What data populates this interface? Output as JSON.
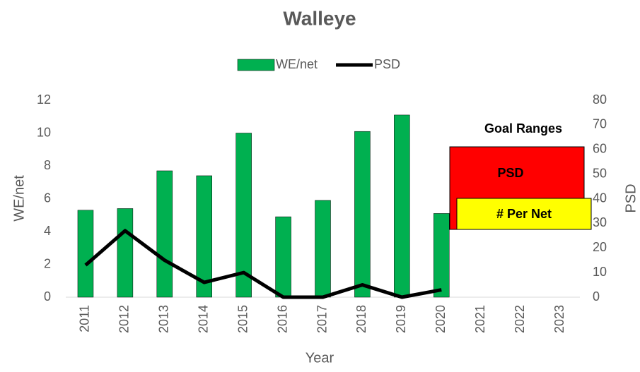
{
  "chart_data": {
    "type": "bar_line",
    "title": "Walleye",
    "categories": [
      "2011",
      "2012",
      "2013",
      "2014",
      "2015",
      "2016",
      "2017",
      "2018",
      "2019",
      "2020",
      "2021",
      "2022",
      "2023"
    ],
    "series": [
      {
        "name": "WE/net",
        "type": "bar",
        "color": "#00b050",
        "values": [
          5.3,
          5.4,
          7.7,
          7.4,
          10.0,
          4.9,
          5.9,
          10.1,
          11.1,
          5.1,
          null,
          null,
          null
        ]
      },
      {
        "name": "PSD",
        "type": "line",
        "axis": "y2",
        "color": "#000000",
        "values": [
          13,
          27,
          15,
          6,
          10,
          0,
          0,
          5,
          0,
          3,
          null,
          null,
          null
        ]
      }
    ],
    "xlabel": "Year",
    "ylabel": "WE/net",
    "y2label": "PSD",
    "ylim": [
      0,
      12
    ],
    "yticks": [
      0,
      2,
      4,
      6,
      8,
      10,
      12
    ],
    "y2lim": [
      0,
      80
    ],
    "y2ticks": [
      0,
      10,
      20,
      30,
      40,
      50,
      60,
      70,
      80
    ],
    "legend": "top",
    "annotations": {
      "heading": "Goal Ranges",
      "psd_box": "PSD",
      "net_box": "# Per Net"
    }
  }
}
